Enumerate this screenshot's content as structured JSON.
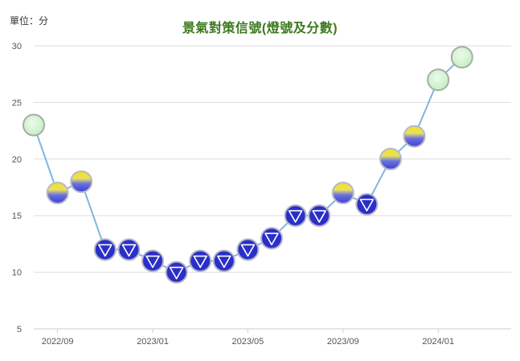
{
  "header": {
    "unit_label": "單位：分",
    "title": "景氣對策信號(燈號及分數)"
  },
  "colors": {
    "line": "#7fb6de",
    "grid": "#dddddd",
    "signal_green_fill": "#d4f5d0",
    "signal_green_stroke": "#a8aca8",
    "signal_yellow_blue_top": "#f2e21a",
    "signal_yellow_blue_bottom": "#3a3fd6",
    "signal_blue_fill": "#2a2fc8",
    "signal_blue_stroke": "#b4b4c8"
  },
  "chart_data": {
    "type": "line",
    "title": "景氣對策信號(燈號及分數)",
    "ylabel": "單位：分",
    "ylim": [
      5,
      30
    ],
    "yticks": [
      5,
      10,
      15,
      20,
      25,
      30
    ],
    "xtick_labels": [
      "2022/09",
      "2023/01",
      "2023/05",
      "2023/09",
      "2024/01"
    ],
    "grid": true,
    "x": [
      "2022/08",
      "2022/09",
      "2022/10",
      "2022/11",
      "2022/12",
      "2023/01",
      "2023/02",
      "2023/03",
      "2023/04",
      "2023/05",
      "2023/06",
      "2023/07",
      "2023/08",
      "2023/09",
      "2023/10",
      "2023/11",
      "2023/12",
      "2024/01",
      "2024/02"
    ],
    "values": [
      23,
      17,
      18,
      12,
      12,
      11,
      10,
      11,
      11,
      12,
      13,
      15,
      15,
      17,
      16,
      20,
      22,
      27,
      29
    ],
    "signals": [
      "green",
      "yellow-blue",
      "yellow-blue",
      "blue",
      "blue",
      "blue",
      "blue",
      "blue",
      "blue",
      "blue",
      "blue",
      "blue",
      "blue",
      "yellow-blue",
      "blue",
      "yellow-blue",
      "yellow-blue",
      "green",
      "green"
    ]
  }
}
